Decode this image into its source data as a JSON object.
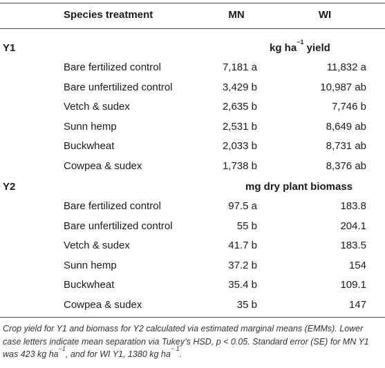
{
  "header": {
    "species": "Species treatment",
    "mn": "MN",
    "wi": "WI"
  },
  "y1": {
    "label": "Y1",
    "unit_prefix": "kg ha",
    "unit_exp": "−1",
    "unit_suffix": " yield",
    "rows": [
      {
        "species": "Bare fertilized control",
        "mn": "7,181 a",
        "wi": "11,832 a"
      },
      {
        "species": "Bare unfertilized control",
        "mn": "3,429 b",
        "wi": "10,987 ab"
      },
      {
        "species": "Vetch & sudex",
        "mn": "2,635 b",
        "wi": "7,746 b"
      },
      {
        "species": "Sunn hemp",
        "mn": "2,531 b",
        "wi": "8,649 ab"
      },
      {
        "species": "Buckwheat",
        "mn": "2,033 b",
        "wi": "8,731 ab"
      },
      {
        "species": "Cowpea & sudex",
        "mn": "1,738 b",
        "wi": "8,376 ab"
      }
    ]
  },
  "y2": {
    "label": "Y2",
    "unit": "mg dry plant biomass",
    "rows": [
      {
        "species": "Bare fertilized control",
        "mn": "97.5 a",
        "wi": "183.8"
      },
      {
        "species": "Bare unfertilized control",
        "mn": "55 b",
        "wi": "204.1"
      },
      {
        "species": "Vetch & sudex",
        "mn": "41.7 b",
        "wi": "183.5"
      },
      {
        "species": "Sunn hemp",
        "mn": "37.2 b",
        "wi": "154"
      },
      {
        "species": "Buckwheat",
        "mn": "35.4 b",
        "wi": "109.1"
      },
      {
        "species": "Cowpea & sudex",
        "mn": "35 b",
        "wi": "147"
      }
    ]
  },
  "footnote": {
    "part1": "Crop yield for Y1 and biomass for Y2 calculated via estimated marginal means (EMMs). Lower case letters indicate mean separation via Tukey’s HSD, p < 0.05. Standard error (SE) for MN Y1 was 423 kg ha",
    "exp1": "−1",
    "part2": ", and for WI Y1, 1380 kg ha",
    "exp2": "− 1",
    "part3": "."
  }
}
